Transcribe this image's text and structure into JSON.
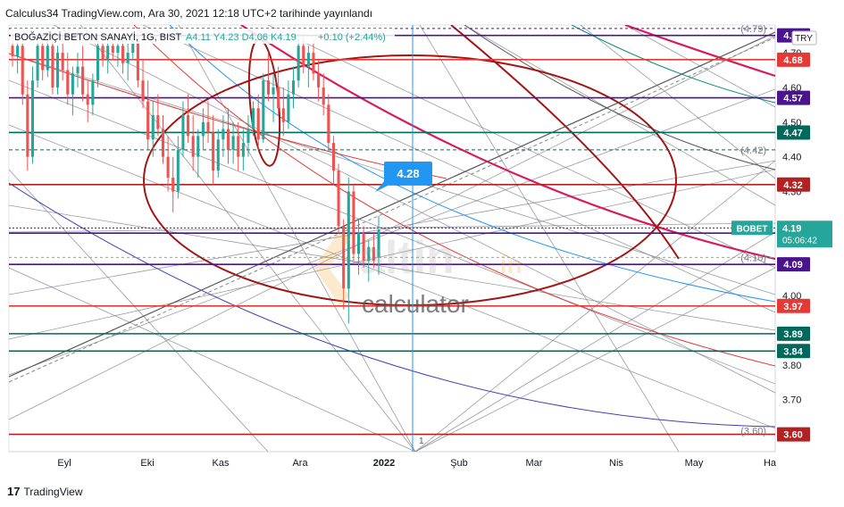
{
  "header": {
    "caption": "Calculus34 TradingView.com, Ara 30, 2021 12:18 UTC+2 tarihinde yayınlandı"
  },
  "footer": {
    "logo": "17",
    "brand": "TradingView"
  },
  "watermark": {
    "brand": "altin",
    "suffix": ".in",
    "sub": "calculator"
  },
  "colors": {
    "accent_blue": "#2196f3",
    "red_level": "#b22222",
    "purple_level": "#4a148c",
    "teal_level": "#00695c",
    "pink_arc": "#d81b60",
    "dark_red_ellipse": "#a31515"
  },
  "chart_data": {
    "type": "candlestick",
    "symbol_line": "BOĞAZİÇİ BETON SANAYİ, 1G, BIST",
    "ohlc": {
      "open": "A4.11",
      "high": "Y4.23",
      "low": "D4.06",
      "close": "K4.19",
      "change": "+0.10 (+2.44%)"
    },
    "currency": "TRY",
    "y_axis": {
      "min": 3.55,
      "max": 4.78,
      "ticks": [
        "3.70",
        "3.80",
        "3.90",
        "4.00",
        "4.10",
        "4.20",
        "4.30",
        "4.40",
        "4.50",
        "4.60",
        "4.70"
      ]
    },
    "x_axis_labels": [
      "Eyl",
      "Eki",
      "Kas",
      "Ara",
      "2022",
      "Şub",
      "Mar",
      "Nis",
      "May",
      "Ha"
    ],
    "current_price": {
      "label": "BOBET",
      "value": "4.19",
      "timer": "05:06:42"
    },
    "callout": "4.28",
    "cursor_marker": "1",
    "price_tags": [
      {
        "value": "4.75",
        "color": "#4a148c"
      },
      {
        "value": "4.68",
        "color": "#e53935"
      },
      {
        "value": "4.57",
        "color": "#4a148c"
      },
      {
        "value": "4.47",
        "color": "#00695c"
      },
      {
        "value": "4.32",
        "color": "#b22222"
      },
      {
        "value": "4.18",
        "color": "#4a148c"
      },
      {
        "value": "4.09",
        "color": "#4a148c"
      },
      {
        "value": "3.97",
        "color": "#e53935"
      },
      {
        "value": "3.89",
        "color": "#00695c"
      },
      {
        "value": "3.84",
        "color": "#00695c"
      },
      {
        "value": "3.60",
        "color": "#b22222"
      }
    ],
    "annotations": [
      {
        "text": "(4.79)",
        "price": 4.77
      },
      {
        "text": "(4.42)",
        "price": 4.42
      },
      {
        "text": "(4.10)",
        "price": 4.11
      },
      {
        "text": "(3.60)",
        "price": 3.61
      }
    ],
    "candles": [
      {
        "o": 4.72,
        "h": 4.76,
        "l": 4.66,
        "c": 4.69
      },
      {
        "o": 4.69,
        "h": 4.74,
        "l": 4.64,
        "c": 4.72
      },
      {
        "o": 4.72,
        "h": 4.75,
        "l": 4.55,
        "c": 4.58
      },
      {
        "o": 4.58,
        "h": 4.62,
        "l": 4.36,
        "c": 4.4
      },
      {
        "o": 4.4,
        "h": 4.66,
        "l": 4.38,
        "c": 4.62
      },
      {
        "o": 4.62,
        "h": 4.76,
        "l": 4.6,
        "c": 4.72
      },
      {
        "o": 4.72,
        "h": 4.75,
        "l": 4.62,
        "c": 4.65
      },
      {
        "o": 4.65,
        "h": 4.75,
        "l": 4.63,
        "c": 4.72
      },
      {
        "o": 4.72,
        "h": 4.75,
        "l": 4.58,
        "c": 4.6
      },
      {
        "o": 4.6,
        "h": 4.72,
        "l": 4.58,
        "c": 4.7
      },
      {
        "o": 4.7,
        "h": 4.75,
        "l": 4.62,
        "c": 4.65
      },
      {
        "o": 4.65,
        "h": 4.7,
        "l": 4.55,
        "c": 4.58
      },
      {
        "o": 4.58,
        "h": 4.66,
        "l": 4.52,
        "c": 4.64
      },
      {
        "o": 4.64,
        "h": 4.7,
        "l": 4.6,
        "c": 4.66
      },
      {
        "o": 4.66,
        "h": 4.72,
        "l": 4.56,
        "c": 4.58
      },
      {
        "o": 4.58,
        "h": 4.62,
        "l": 4.5,
        "c": 4.55
      },
      {
        "o": 4.55,
        "h": 4.64,
        "l": 4.52,
        "c": 4.62
      },
      {
        "o": 4.62,
        "h": 4.74,
        "l": 4.6,
        "c": 4.72
      },
      {
        "o": 4.72,
        "h": 4.76,
        "l": 4.66,
        "c": 4.68
      },
      {
        "o": 4.68,
        "h": 4.74,
        "l": 4.64,
        "c": 4.72
      },
      {
        "o": 4.72,
        "h": 4.76,
        "l": 4.68,
        "c": 4.7
      },
      {
        "o": 4.7,
        "h": 4.74,
        "l": 4.66,
        "c": 4.72
      },
      {
        "o": 4.72,
        "h": 4.76,
        "l": 4.64,
        "c": 4.67
      },
      {
        "o": 4.67,
        "h": 4.73,
        "l": 4.62,
        "c": 4.7
      },
      {
        "o": 4.7,
        "h": 4.76,
        "l": 4.68,
        "c": 4.74
      },
      {
        "o": 4.74,
        "h": 4.76,
        "l": 4.6,
        "c": 4.62
      },
      {
        "o": 4.62,
        "h": 4.68,
        "l": 4.54,
        "c": 4.56
      },
      {
        "o": 4.56,
        "h": 4.62,
        "l": 4.42,
        "c": 4.45
      },
      {
        "o": 4.45,
        "h": 4.56,
        "l": 4.4,
        "c": 4.52
      },
      {
        "o": 4.52,
        "h": 4.58,
        "l": 4.46,
        "c": 4.48
      },
      {
        "o": 4.48,
        "h": 4.52,
        "l": 4.38,
        "c": 4.4
      },
      {
        "o": 4.4,
        "h": 4.46,
        "l": 4.3,
        "c": 4.34
      },
      {
        "o": 4.34,
        "h": 4.4,
        "l": 4.24,
        "c": 4.3
      },
      {
        "o": 4.3,
        "h": 4.46,
        "l": 4.28,
        "c": 4.42
      },
      {
        "o": 4.42,
        "h": 4.56,
        "l": 4.4,
        "c": 4.52
      },
      {
        "o": 4.52,
        "h": 4.58,
        "l": 4.44,
        "c": 4.46
      },
      {
        "o": 4.46,
        "h": 4.52,
        "l": 4.36,
        "c": 4.4
      },
      {
        "o": 4.4,
        "h": 4.48,
        "l": 4.34,
        "c": 4.46
      },
      {
        "o": 4.46,
        "h": 4.54,
        "l": 4.42,
        "c": 4.5
      },
      {
        "o": 4.5,
        "h": 4.56,
        "l": 4.44,
        "c": 4.47
      },
      {
        "o": 4.47,
        "h": 4.52,
        "l": 4.32,
        "c": 4.36
      },
      {
        "o": 4.36,
        "h": 4.48,
        "l": 4.34,
        "c": 4.45
      },
      {
        "o": 4.45,
        "h": 4.52,
        "l": 4.4,
        "c": 4.48
      },
      {
        "o": 4.48,
        "h": 4.54,
        "l": 4.38,
        "c": 4.42
      },
      {
        "o": 4.42,
        "h": 4.5,
        "l": 4.38,
        "c": 4.46
      },
      {
        "o": 4.46,
        "h": 4.5,
        "l": 4.36,
        "c": 4.4
      },
      {
        "o": 4.4,
        "h": 4.48,
        "l": 4.36,
        "c": 4.44
      },
      {
        "o": 4.44,
        "h": 4.52,
        "l": 4.4,
        "c": 4.48
      },
      {
        "o": 4.48,
        "h": 4.56,
        "l": 4.46,
        "c": 4.54
      },
      {
        "o": 4.54,
        "h": 4.58,
        "l": 4.42,
        "c": 4.45
      },
      {
        "o": 4.45,
        "h": 4.64,
        "l": 4.44,
        "c": 4.62
      },
      {
        "o": 4.62,
        "h": 4.7,
        "l": 4.56,
        "c": 4.58
      },
      {
        "o": 4.58,
        "h": 4.64,
        "l": 4.5,
        "c": 4.6
      },
      {
        "o": 4.6,
        "h": 4.66,
        "l": 4.52,
        "c": 4.54
      },
      {
        "o": 4.54,
        "h": 4.6,
        "l": 4.46,
        "c": 4.5
      },
      {
        "o": 4.5,
        "h": 4.62,
        "l": 4.48,
        "c": 4.58
      },
      {
        "o": 4.58,
        "h": 4.66,
        "l": 4.54,
        "c": 4.62
      },
      {
        "o": 4.62,
        "h": 4.74,
        "l": 4.6,
        "c": 4.72
      },
      {
        "o": 4.72,
        "h": 4.76,
        "l": 4.64,
        "c": 4.66
      },
      {
        "o": 4.66,
        "h": 4.72,
        "l": 4.6,
        "c": 4.7
      },
      {
        "o": 4.7,
        "h": 4.74,
        "l": 4.62,
        "c": 4.64
      },
      {
        "o": 4.64,
        "h": 4.68,
        "l": 4.56,
        "c": 4.6
      },
      {
        "o": 4.6,
        "h": 4.64,
        "l": 4.52,
        "c": 4.55
      },
      {
        "o": 4.55,
        "h": 4.58,
        "l": 4.42,
        "c": 4.44
      },
      {
        "o": 4.44,
        "h": 4.46,
        "l": 4.32,
        "c": 4.36
      },
      {
        "o": 4.36,
        "h": 4.38,
        "l": 4.18,
        "c": 4.2
      },
      {
        "o": 4.2,
        "h": 4.22,
        "l": 3.96,
        "c": 4.02
      },
      {
        "o": 4.02,
        "h": 4.34,
        "l": 3.92,
        "c": 4.3
      },
      {
        "o": 4.3,
        "h": 4.32,
        "l": 4.1,
        "c": 4.12
      },
      {
        "o": 4.12,
        "h": 4.22,
        "l": 4.06,
        "c": 4.18
      },
      {
        "o": 4.18,
        "h": 4.2,
        "l": 4.08,
        "c": 4.1
      },
      {
        "o": 4.1,
        "h": 4.16,
        "l": 4.04,
        "c": 4.14
      },
      {
        "o": 4.14,
        "h": 4.18,
        "l": 4.08,
        "c": 4.1
      },
      {
        "o": 4.11,
        "h": 4.23,
        "l": 4.06,
        "c": 4.19
      }
    ]
  }
}
